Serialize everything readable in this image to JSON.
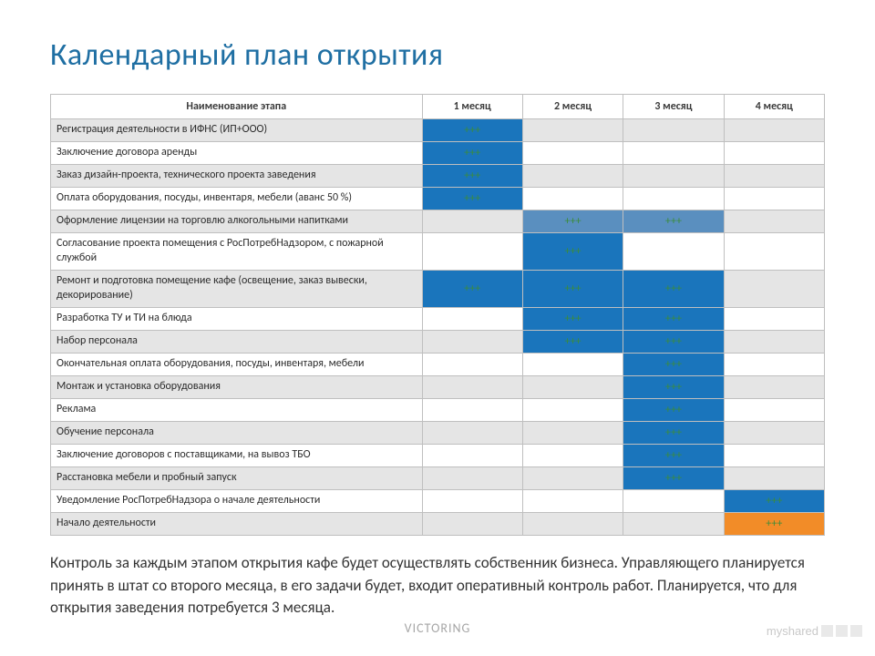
{
  "title": "Календарный план открытия",
  "colors": {
    "title": "#1f6fa3",
    "header_bg": "#ffffff",
    "alt_row_bg": "#e5e5e5",
    "white_row_bg": "#ffffff",
    "fill_blue": "#1a75bc",
    "fill_lightblue": "#5a8fbf",
    "fill_orange": "#f28c28",
    "border": "#bfbfbf",
    "marker_text": "#3b8c3b"
  },
  "table": {
    "header_col": "Наименование этапа",
    "month_cols": [
      "1 месяц",
      "2 месяц",
      "3 месяц",
      "4 месяц"
    ],
    "col_widths_pct": [
      48,
      13,
      13,
      13,
      13
    ],
    "marker": "+++",
    "row_height_tall": 34,
    "rows": [
      {
        "label": "Регистрация деятельности в ИФНС (ИП+ООО)",
        "cells": [
          "blue",
          "",
          "",
          ""
        ],
        "alt": true
      },
      {
        "label": "Заключение договора аренды",
        "cells": [
          "blue",
          "",
          "",
          ""
        ],
        "alt": false
      },
      {
        "label": "Заказ дизайн-проекта, технического проекта заведения",
        "cells": [
          "blue",
          "",
          "",
          ""
        ],
        "alt": true
      },
      {
        "label": "Оплата оборудования, посуды, инвентаря, мебели (аванс 50 %)",
        "cells": [
          "blue",
          "",
          "",
          ""
        ],
        "alt": false
      },
      {
        "label": "Оформление лицензии на торговлю алкогольными напитками",
        "cells": [
          "",
          "lightblue",
          "lightblue",
          ""
        ],
        "alt": true
      },
      {
        "label": "Согласование проекта помещения с РосПотребНадзором, с пожарной службой",
        "cells": [
          "",
          "blue",
          "",
          ""
        ],
        "alt": false,
        "tall": true
      },
      {
        "label": "Ремонт и подготовка помещение кафе (освещение, заказ вывески, декорирование)",
        "cells": [
          "blue",
          "blue",
          "blue",
          ""
        ],
        "alt": true,
        "tall": true
      },
      {
        "label": "Разработка ТУ и ТИ на блюда",
        "cells": [
          "",
          "blue",
          "blue",
          ""
        ],
        "alt": false
      },
      {
        "label": "Набор персонала",
        "cells": [
          "",
          "blue",
          "blue",
          ""
        ],
        "alt": true
      },
      {
        "label": "Окончательная оплата оборудования, посуды, инвентаря, мебели",
        "cells": [
          "",
          "",
          "blue",
          ""
        ],
        "alt": false
      },
      {
        "label": "Монтаж и установка оборудования",
        "cells": [
          "",
          "",
          "blue",
          ""
        ],
        "alt": true
      },
      {
        "label": "Реклама",
        "cells": [
          "",
          "",
          "blue",
          ""
        ],
        "alt": false
      },
      {
        "label": "Обучение персонала",
        "cells": [
          "",
          "",
          "blue",
          ""
        ],
        "alt": true
      },
      {
        "label": "Заключение договоров с поставщиками, на вывоз ТБО",
        "cells": [
          "",
          "",
          "blue",
          ""
        ],
        "alt": false
      },
      {
        "label": "Расстановка мебели и пробный запуск",
        "cells": [
          "",
          "",
          "blue",
          ""
        ],
        "alt": true
      },
      {
        "label": "Уведомление РосПотребНадзора о начале деятельности",
        "cells": [
          "",
          "",
          "",
          "blue"
        ],
        "alt": false
      },
      {
        "label": "Начало деятельности",
        "cells": [
          "",
          "",
          "",
          "orange"
        ],
        "alt": true
      }
    ]
  },
  "footnote": "Контроль за каждым этапом открытия кафе будет осуществлять собственник бизнеса. Управляющего планируется принять в штат со второго месяца, в его задачи будет, входит оперативный контроль работ. Планируется, что для открытия заведения потребуется 3 месяца.",
  "footer_brand": "VICTORING",
  "watermark": "myshared"
}
